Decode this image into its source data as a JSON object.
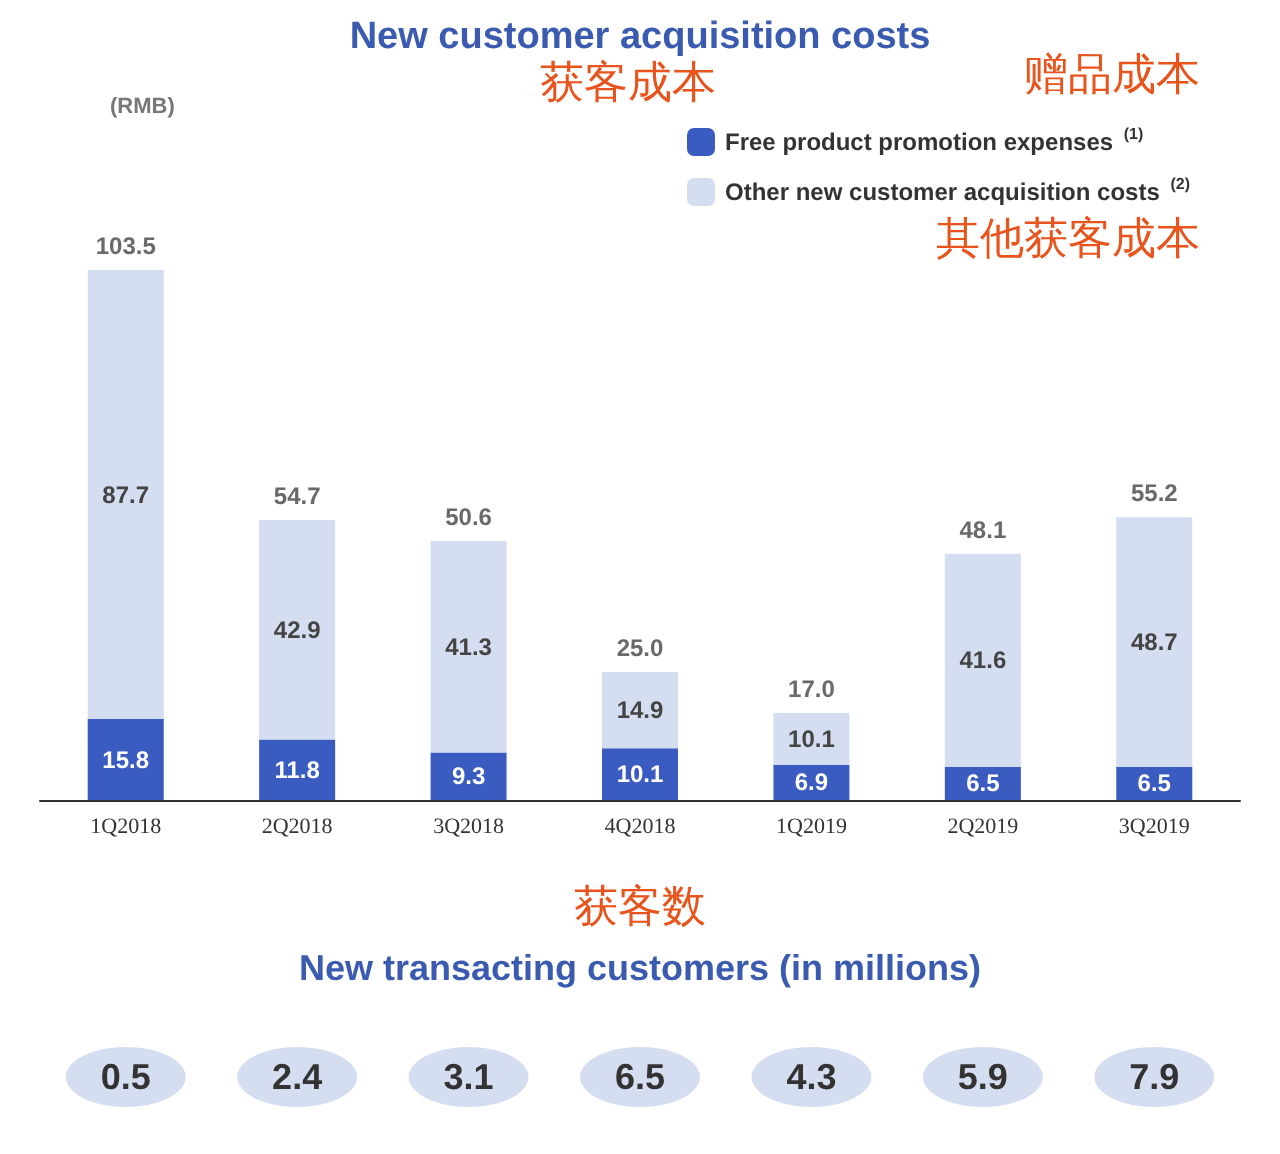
{
  "chart_data": [
    {
      "type": "bar",
      "title": "New customer acquisition costs",
      "ylabel": "(RMB)",
      "stacked": true,
      "data_labels": true,
      "legend": "top right",
      "categories": [
        "1Q2018",
        "2Q2018",
        "3Q2018",
        "4Q2018",
        "1Q2019",
        "2Q2019",
        "3Q2019"
      ],
      "series": [
        {
          "name": "Free product promotion expenses $^{(1)}$",
          "color": "#3a5bbf",
          "values": [
            15.8,
            11.8,
            9.3,
            10.1,
            6.9,
            6.5,
            6.5
          ]
        },
        {
          "name": "Other new customer acquisition costs $^{(2)}$",
          "color": "#d5ddf0",
          "values": [
            87.7,
            42.9,
            41.3,
            14.9,
            10.1,
            41.6,
            48.7
          ]
        }
      ],
      "totals": [
        "103.5",
        "54.7",
        "50.6",
        "25.0",
        "17.0",
        "48.1",
        "55.2"
      ],
      "annotations": [
        "获客成本",
        "赠品成本",
        "其他获客成本"
      ]
    },
    {
      "type": "other",
      "title": "New transacting customers (in millions)",
      "categories": [
        null,
        null,
        null,
        null,
        null,
        null,
        null
      ],
      "values": [
        0.5,
        2.4,
        3.1,
        6.5,
        4.3,
        5.9,
        7.9
      ],
      "data_labels": true,
      "annotations": [
        "获客数"
      ]
    }
  ]
}
